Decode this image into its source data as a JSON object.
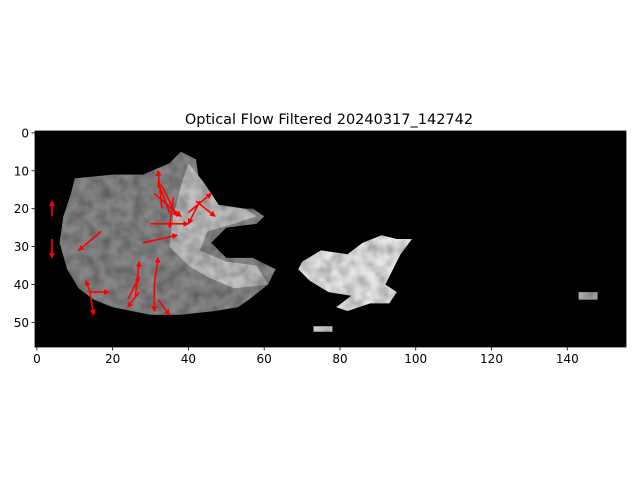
{
  "chart_data": {
    "type": "heatmap",
    "title": "Optical Flow Filtered 20240317_142742",
    "xlabel": "",
    "ylabel": "",
    "image_width": 156,
    "image_height": 57,
    "xlim": [
      -0.5,
      155.5
    ],
    "ylim": [
      56.5,
      -0.5
    ],
    "y_axis_inverted": true,
    "colormap": "gray",
    "grid": false,
    "x_ticks": [
      0,
      20,
      40,
      60,
      80,
      100,
      120,
      140
    ],
    "y_ticks": [
      0,
      10,
      20,
      30,
      40,
      50
    ],
    "background_value": 0,
    "regions": [
      {
        "name": "west-cloud",
        "value_range": [
          0.25,
          0.8
        ],
        "points": [
          [
            10,
            12
          ],
          [
            20,
            11
          ],
          [
            28,
            11
          ],
          [
            35,
            8
          ],
          [
            38,
            5
          ],
          [
            42,
            7
          ],
          [
            43,
            14
          ],
          [
            46,
            19
          ],
          [
            53,
            20
          ],
          [
            57,
            20
          ],
          [
            60,
            22
          ],
          [
            58,
            24
          ],
          [
            50,
            25
          ],
          [
            46,
            29
          ],
          [
            50,
            33
          ],
          [
            57,
            33
          ],
          [
            63,
            36
          ],
          [
            61,
            40
          ],
          [
            56,
            44
          ],
          [
            53,
            46
          ],
          [
            47,
            47
          ],
          [
            38,
            48
          ],
          [
            30,
            48
          ],
          [
            20,
            46
          ],
          [
            15,
            44
          ],
          [
            11,
            41
          ],
          [
            8,
            36
          ],
          [
            6,
            29
          ],
          [
            7,
            22
          ],
          [
            9,
            16
          ]
        ]
      },
      {
        "name": "west-cloud-bright",
        "value_range": [
          0.6,
          0.9
        ],
        "points": [
          [
            40,
            8
          ],
          [
            44,
            13
          ],
          [
            48,
            19
          ],
          [
            55,
            20
          ],
          [
            58,
            22
          ],
          [
            52,
            24
          ],
          [
            45,
            26
          ],
          [
            43,
            31
          ],
          [
            50,
            34
          ],
          [
            58,
            35
          ],
          [
            61,
            40
          ],
          [
            52,
            41
          ],
          [
            45,
            38
          ],
          [
            40,
            35
          ],
          [
            35,
            30
          ],
          [
            36,
            22
          ],
          [
            38,
            14
          ]
        ]
      },
      {
        "name": "central-cloud",
        "value_range": [
          0.8,
          1.0
        ],
        "points": [
          [
            70,
            34
          ],
          [
            75,
            31
          ],
          [
            82,
            32
          ],
          [
            86,
            29
          ],
          [
            91,
            27
          ],
          [
            95,
            28
          ],
          [
            99,
            28
          ],
          [
            96,
            32
          ],
          [
            94,
            36
          ],
          [
            92,
            40
          ],
          [
            95,
            42
          ],
          [
            93,
            45
          ],
          [
            88,
            45
          ],
          [
            82,
            47
          ],
          [
            79,
            46
          ],
          [
            83,
            43
          ],
          [
            77,
            42
          ],
          [
            72,
            39
          ],
          [
            69,
            36
          ]
        ]
      },
      {
        "name": "central-cloud-fragment",
        "value_range": [
          0.7,
          0.9
        ],
        "points": [
          [
            73,
            51
          ],
          [
            78,
            51
          ],
          [
            78,
            52.5
          ],
          [
            73,
            52.5
          ]
        ]
      },
      {
        "name": "east-speck",
        "value_range": [
          0.6,
          0.8
        ],
        "points": [
          [
            143,
            42
          ],
          [
            148,
            42
          ],
          [
            148,
            44
          ],
          [
            143,
            44
          ]
        ]
      }
    ],
    "vectors": [
      {
        "x": 4,
        "y": 22,
        "u": 0,
        "v": -4
      },
      {
        "x": 4,
        "y": 28,
        "u": 0,
        "v": 5
      },
      {
        "x": 17,
        "y": 26,
        "u": -6,
        "v": 5
      },
      {
        "x": 14,
        "y": 42,
        "u": 5,
        "v": 0
      },
      {
        "x": 14,
        "y": 42,
        "u": 1,
        "v": 6
      },
      {
        "x": 14,
        "y": 42,
        "u": -1,
        "v": -3
      },
      {
        "x": 33,
        "y": 20,
        "u": -1,
        "v": -10
      },
      {
        "x": 35,
        "y": 21,
        "u": -3,
        "v": -8
      },
      {
        "x": 36,
        "y": 17,
        "u": -1,
        "v": 8
      },
      {
        "x": 33,
        "y": 14,
        "u": 4,
        "v": 8
      },
      {
        "x": 31,
        "y": 16,
        "u": 7,
        "v": 6
      },
      {
        "x": 30,
        "y": 24,
        "u": 10,
        "v": 0
      },
      {
        "x": 40,
        "y": 21,
        "u": 6,
        "v": -5
      },
      {
        "x": 43,
        "y": 18,
        "u": -3,
        "v": 6
      },
      {
        "x": 42,
        "y": 18,
        "u": 5,
        "v": 4
      },
      {
        "x": 28,
        "y": 29,
        "u": 9,
        "v": -2
      },
      {
        "x": 26,
        "y": 43,
        "u": 1,
        "v": -9
      },
      {
        "x": 24,
        "y": 44,
        "u": 3,
        "v": -6
      },
      {
        "x": 27,
        "y": 42,
        "u": -3,
        "v": 4
      },
      {
        "x": 31,
        "y": 40,
        "u": 1,
        "v": -7
      },
      {
        "x": 31,
        "y": 40,
        "u": 0,
        "v": 7
      },
      {
        "x": 32,
        "y": 44,
        "u": 3,
        "v": 4
      }
    ],
    "vector_color": "#ff0000"
  }
}
